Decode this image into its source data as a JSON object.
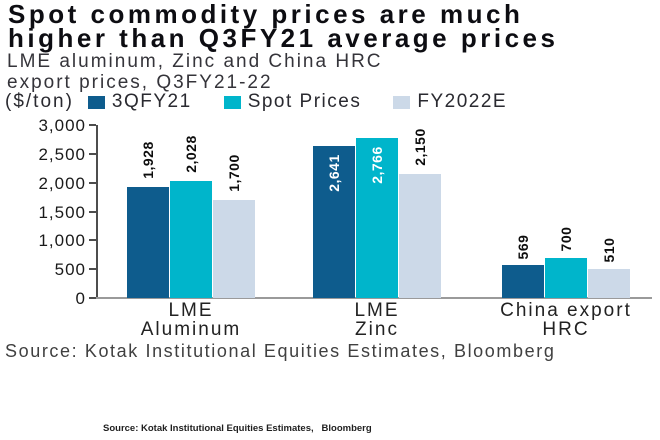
{
  "header": {
    "title_line1": "Spot commodity prices are much",
    "title_line2": "higher than Q3FY21 average prices",
    "subtitle_line1": "LME aluminum, Zinc and China HRC",
    "subtitle_line2": "export prices, Q3FY21-22",
    "unit_label": "($/ton)"
  },
  "legend": [
    {
      "label": "3QFY21",
      "color": "#0e5c8d"
    },
    {
      "label": "Spot Prices",
      "color": "#00b5cb"
    },
    {
      "label": "FY2022E",
      "color": "#ccd9e8"
    }
  ],
  "chart_data": {
    "type": "bar",
    "title": "Spot commodity prices are much higher than Q3FY21 average prices",
    "subtitle": "LME aluminum, Zinc and China HRC export prices, Q3FY21-22",
    "unit": "$/ton",
    "categories": [
      [
        "LME",
        "Aluminum"
      ],
      [
        "LME",
        "Zinc"
      ],
      [
        "China export",
        "HRC"
      ]
    ],
    "series": [
      {
        "name": "3QFY21",
        "color": "#0e5c8d",
        "values": [
          1928,
          2641,
          569
        ],
        "label_inside": [
          false,
          true,
          false
        ],
        "label_color_inside": "#ffffff"
      },
      {
        "name": "Spot Prices",
        "color": "#00b5cb",
        "values": [
          2028,
          2766,
          700
        ],
        "label_inside": [
          false,
          true,
          false
        ],
        "label_color_inside": "#ffffff"
      },
      {
        "name": "FY2022E",
        "color": "#ccd9e8",
        "values": [
          1700,
          2150,
          510
        ],
        "label_inside": [
          false,
          false,
          false
        ],
        "label_color_inside": "#ffffff"
      }
    ],
    "data_labels": [
      [
        "1,928",
        "2,641",
        "569"
      ],
      [
        "2,028",
        "2,766",
        "700"
      ],
      [
        "1,700",
        "2,150",
        "510"
      ]
    ],
    "ylim": [
      0,
      3000
    ],
    "ytick_labels": [
      "3,000",
      "2,500",
      "2,000",
      "1,500",
      "1,000",
      "500",
      "0"
    ],
    "ytick_values": [
      3000,
      2500,
      2000,
      1500,
      1000,
      500,
      0
    ],
    "grid": false,
    "legend_position": "top",
    "bar_label_rotation": -90
  },
  "footer": {
    "source": "Source: Kotak Institutional Equities Estimates, Bloomberg",
    "small_source": "Source: Kotak Institutional Equities Estimates,   Bloomberg"
  }
}
